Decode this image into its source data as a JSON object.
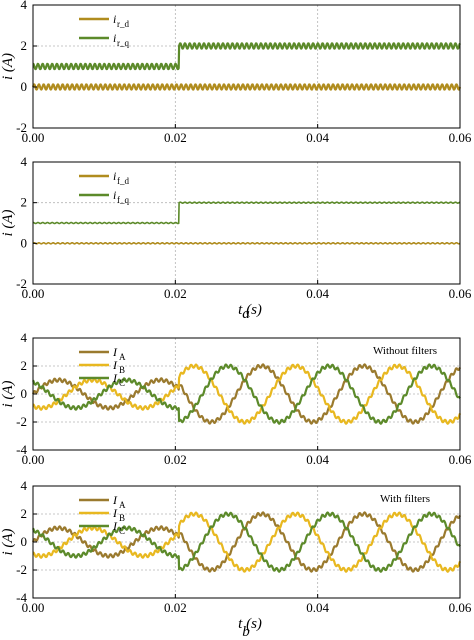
{
  "chart_data": [
    {
      "type": "line",
      "xlabel": "",
      "ylabel": "i (A)",
      "xlim": [
        0,
        0.06
      ],
      "ylim": [
        -2,
        4
      ],
      "xticks": [
        "0.00",
        "0.02",
        "0.04",
        "0.06"
      ],
      "yticks": [
        "-2",
        "0",
        "2",
        "4"
      ],
      "grid": true,
      "legend_position": "top-left",
      "series": [
        {
          "name": "i",
          "subscript": "r_d",
          "color": "#b08c1e",
          "before": 0,
          "after": 0,
          "ripple": "high"
        },
        {
          "name": "i",
          "subscript": "r_q",
          "color": "#5c8a2a",
          "before": 1,
          "after": 2,
          "ripple": "high"
        }
      ],
      "step_time": 0.0205
    },
    {
      "type": "line",
      "xlabel": "t (s)",
      "ylabel": "i (A)",
      "xlim": [
        0,
        0.06
      ],
      "ylim": [
        -2,
        4
      ],
      "xticks": [
        "0.00",
        "0.02",
        "0.04",
        "0.06"
      ],
      "yticks": [
        "-2",
        "0",
        "2",
        "4"
      ],
      "grid": true,
      "legend_position": "top-left",
      "series": [
        {
          "name": "i",
          "subscript": "f_d",
          "color": "#b08c1e",
          "before": 0,
          "after": 0,
          "ripple": "low"
        },
        {
          "name": "i",
          "subscript": "f_q",
          "color": "#5c8a2a",
          "before": 1,
          "after": 2,
          "ripple": "low"
        }
      ],
      "step_time": 0.0205
    },
    {
      "type": "line",
      "xlabel": "",
      "ylabel": "i (A)",
      "annotation": "Without filters",
      "xlim": [
        0,
        0.06
      ],
      "ylim": [
        -4,
        4
      ],
      "xticks": [
        "0.00",
        "0.02",
        "0.04",
        "0.06"
      ],
      "yticks": [
        "-4",
        "-2",
        "0",
        "2",
        "4"
      ],
      "grid": true,
      "legend_position": "top-left",
      "frequency_hz": 70,
      "series": [
        {
          "name": "I",
          "subscript": "A",
          "color": "#9a7a2e",
          "amp_before": 1,
          "amp_after": 2,
          "phase_deg": 0
        },
        {
          "name": "I",
          "subscript": "B",
          "color": "#e8b820",
          "amp_before": 1,
          "amp_after": 2,
          "phase_deg": -120
        },
        {
          "name": "I",
          "subscript": "C",
          "color": "#5c8a2a",
          "amp_before": 1,
          "amp_after": 2,
          "phase_deg": 120
        }
      ],
      "step_time": 0.0205
    },
    {
      "type": "line",
      "xlabel": "t (s)",
      "ylabel": "i (A)",
      "annotation": "With filters",
      "xlim": [
        0,
        0.06
      ],
      "ylim": [
        -4,
        4
      ],
      "xticks": [
        "0.00",
        "0.02",
        "0.04",
        "0.06"
      ],
      "yticks": [
        "-4",
        "-2",
        "0",
        "2",
        "4"
      ],
      "grid": true,
      "legend_position": "top-left",
      "frequency_hz": 70,
      "series": [
        {
          "name": "I",
          "subscript": "A",
          "color": "#9a7a2e",
          "amp_before": 1,
          "amp_after": 2,
          "phase_deg": 0
        },
        {
          "name": "I",
          "subscript": "B",
          "color": "#e8b820",
          "amp_before": 1,
          "amp_after": 2,
          "phase_deg": -120
        },
        {
          "name": "I",
          "subscript": "C",
          "color": "#5c8a2a",
          "amp_before": 1,
          "amp_after": 2,
          "phase_deg": 120
        }
      ],
      "step_time": 0.0205
    }
  ],
  "captions": {
    "top": "a",
    "bottom": "b"
  }
}
